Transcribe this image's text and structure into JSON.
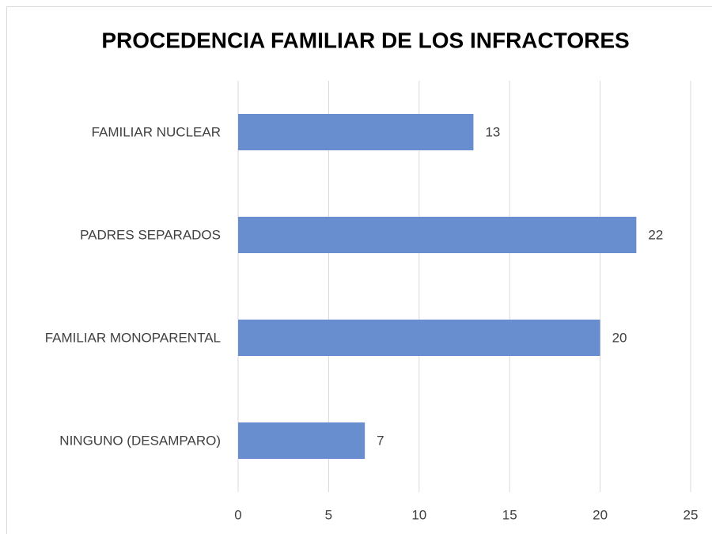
{
  "chart_data": {
    "type": "bar",
    "orientation": "horizontal",
    "title": "PROCEDENCIA FAMILIAR DE LOS INFRACTORES",
    "categories": [
      "FAMILIAR NUCLEAR",
      "PADRES SEPARADOS",
      "FAMILIAR MONOPARENTAL",
      "NINGUNO (DESAMPARO)"
    ],
    "values": [
      13,
      22,
      20,
      7
    ],
    "color": "#698ed0",
    "xlim": [
      0,
      25
    ],
    "xticks": [
      0,
      5,
      10,
      15,
      20,
      25
    ],
    "grid": true
  }
}
